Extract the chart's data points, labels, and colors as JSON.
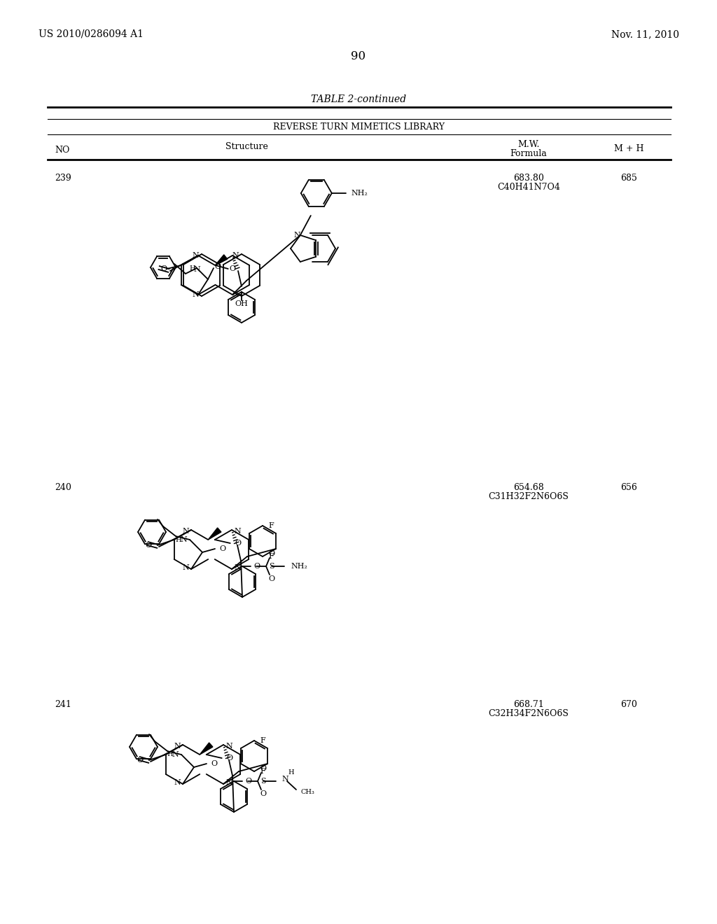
{
  "page_number": "90",
  "top_left": "US 2010/0286094 A1",
  "top_right": "Nov. 11, 2010",
  "table_title": "TABLE 2-continued",
  "table_subtitle": "REVERSE TURN MIMETICS LIBRARY",
  "entries": [
    {
      "no": "239",
      "mw": "683.80",
      "formula": "C40H41N7O4",
      "mh": "685"
    },
    {
      "no": "240",
      "mw": "654.68",
      "formula": "C31H32F2N6O6S",
      "mh": "656"
    },
    {
      "no": "241",
      "mw": "668.71",
      "formula": "C32H34F2N6O6S",
      "mh": "670"
    }
  ],
  "bg_color": "#ffffff",
  "text_color": "#000000"
}
